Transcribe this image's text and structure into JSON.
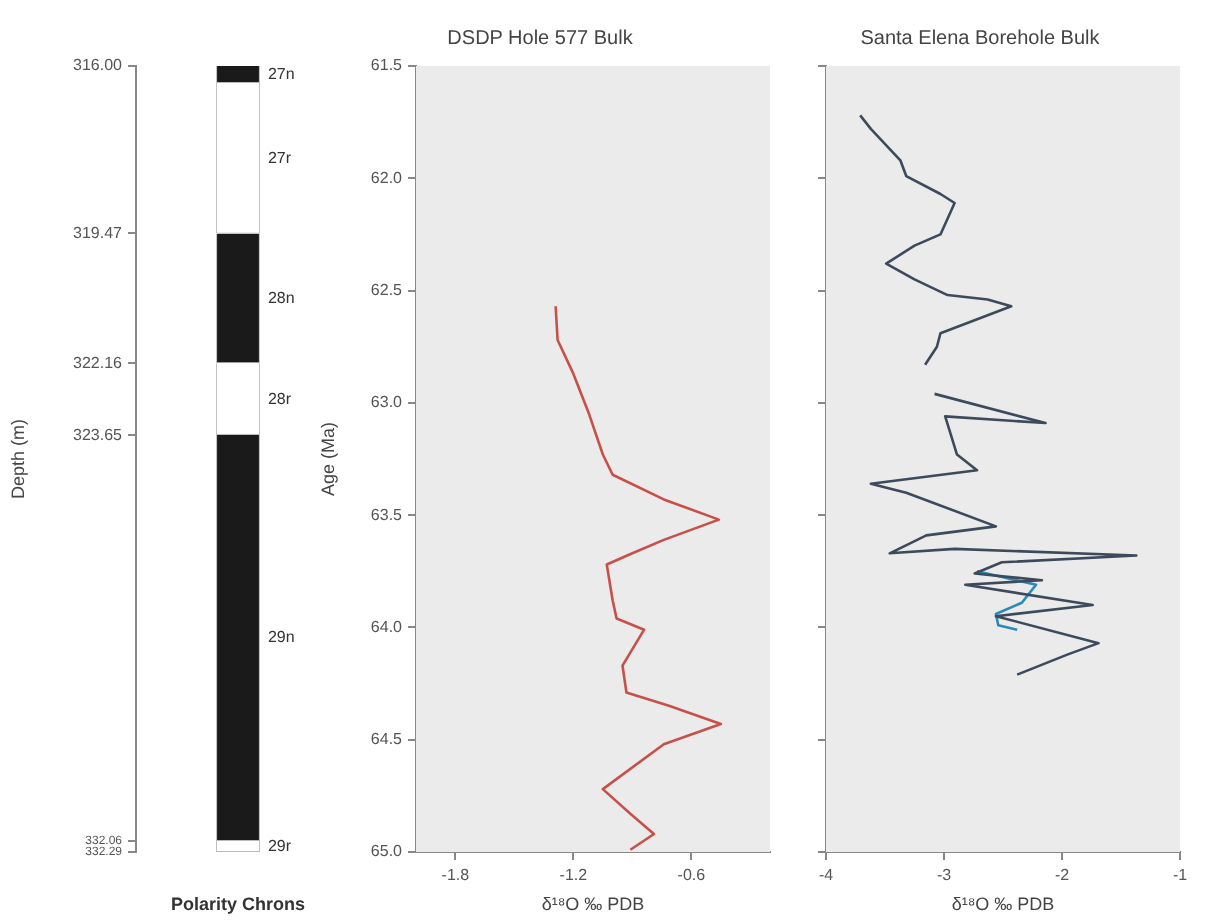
{
  "chart_data": [
    {
      "type": "bar",
      "xlabel": "Polarity Chrons",
      "ylabel": "Depth (m)",
      "categories": [
        null
      ],
      "ylim": [
        332.29,
        316.0
      ],
      "yticks": [
        {
          "value": 316.0,
          "label": "316.00"
        },
        {
          "value": 319.47,
          "label": "319.47"
        },
        {
          "value": 322.16,
          "label": "322.16"
        },
        {
          "value": 323.65,
          "label": "323.65"
        },
        {
          "value": 332.06,
          "label": "332.06"
        },
        {
          "value": 332.29,
          "label": "332.29"
        }
      ],
      "series": [
        {
          "name": "27n",
          "color": "#1a1a1a",
          "base": [
            316.0
          ],
          "values": [
            0.35
          ]
        },
        {
          "name": "27r",
          "color": "#ffffff",
          "base": [
            316.35
          ],
          "values": [
            3.12
          ]
        },
        {
          "name": "28n",
          "color": "#1a1a1a",
          "base": [
            319.47
          ],
          "values": [
            2.69
          ]
        },
        {
          "name": "28r",
          "color": "#ffffff",
          "base": [
            322.16
          ],
          "values": [
            1.49
          ]
        },
        {
          "name": "29n",
          "color": "#1a1a1a",
          "base": [
            323.65
          ],
          "values": [
            8.41
          ]
        },
        {
          "name": "29r",
          "color": "#ffffff",
          "base": [
            332.06
          ],
          "values": [
            0.23
          ]
        }
      ]
    },
    {
      "type": "line",
      "title": "DSDP Hole 577 Bulk",
      "xlabel": "δ¹⁸O ‰ PDB",
      "ylabel": "Age (Ma)",
      "orientation": "horizontal",
      "xlim": [
        -2.0,
        -0.2
      ],
      "xticks": [
        -1.8,
        -1.2,
        -0.6
      ],
      "ylim": [
        65.0,
        61.5
      ],
      "yticks": [
        {
          "value": 61.5,
          "label": "61.5"
        },
        {
          "value": 62,
          "label": "62.0"
        },
        {
          "value": 62.5,
          "label": "62.5"
        },
        {
          "value": 63,
          "label": "63.0"
        },
        {
          "value": 63.5,
          "label": "63.5"
        },
        {
          "value": 64,
          "label": "64.0"
        },
        {
          "value": 64.5,
          "label": "64.5"
        },
        {
          "value": 65,
          "label": "65.0"
        }
      ],
      "series": [
        {
          "color": "#c8504a",
          "x": [
            62.57,
            62.72,
            62.87,
            63.05,
            63.23,
            63.32,
            63.43,
            63.52,
            63.61,
            63.67,
            63.72,
            63.88,
            63.96,
            64.01,
            64.17,
            64.29,
            64.35,
            64.43,
            64.52,
            64.72,
            64.83,
            64.92,
            64.99
          ],
          "values": [
            -1.29,
            -1.28,
            -1.2,
            -1.12,
            -1.05,
            -1.0,
            -0.74,
            -0.46,
            -0.74,
            -0.9,
            -1.03,
            -1.0,
            -0.98,
            -0.84,
            -0.95,
            -0.93,
            -0.71,
            -0.45,
            -0.74,
            -1.05,
            -0.91,
            -0.79,
            -0.91
          ]
        }
      ]
    },
    {
      "type": "line",
      "title": "Santa Elena Borehole Bulk",
      "xlabel": "δ¹⁸O ‰ PDB",
      "orientation": "horizontal",
      "tick_labels": "x",
      "xlim": [
        -4,
        -1
      ],
      "xticks": [
        -4,
        -3,
        -2,
        -1
      ],
      "ylim": [
        65.0,
        61.5
      ],
      "yticks": [
        {
          "value": 61.5,
          "label": null
        },
        {
          "value": 62,
          "label": null
        },
        {
          "value": 62.5,
          "label": null
        },
        {
          "value": 63,
          "label": null
        },
        {
          "value": 63.5,
          "label": null
        },
        {
          "value": 64,
          "label": null
        },
        {
          "value": 64.5,
          "label": null
        },
        {
          "value": 65,
          "label": null
        }
      ],
      "series": [
        {
          "color": "#3d4a5c",
          "x": [
            61.72,
            61.78,
            61.92,
            61.99,
            62.07,
            62.11,
            62.25,
            62.3,
            62.38,
            62.45,
            62.52,
            62.54,
            62.57,
            62.61,
            62.69,
            62.75,
            62.83,
            62.9,
            62.96,
            63.09,
            63.06,
            63.23,
            63.3,
            63.36,
            63.4,
            63.55,
            63.59,
            63.67,
            63.65,
            63.68,
            63.71,
            63.76,
            63.79,
            63.81,
            63.9,
            63.95,
            64.07,
            64.12,
            64.21
          ],
          "values": [
            -3.71,
            -3.62,
            -3.37,
            -3.32,
            -3.03,
            -2.91,
            -3.03,
            -3.25,
            -3.49,
            -3.25,
            -2.97,
            -2.63,
            -2.43,
            -2.63,
            -3.03,
            -3.06,
            -3.16,
            null,
            -3.08,
            -2.14,
            -2.99,
            -2.89,
            -2.72,
            -3.62,
            -3.32,
            -2.56,
            -3.15,
            -3.46,
            -2.91,
            -1.37,
            -2.51,
            -2.74,
            -2.17,
            -2.82,
            -1.74,
            -2.56,
            -1.69,
            -1.95,
            -2.38
          ]
        },
        {
          "color": "#2a8ab8",
          "x": [
            63.75,
            63.81,
            63.89,
            63.94,
            63.99,
            64.01
          ],
          "values": [
            -2.72,
            -2.22,
            -2.34,
            -2.56,
            -2.54,
            -2.38
          ]
        }
      ]
    }
  ]
}
